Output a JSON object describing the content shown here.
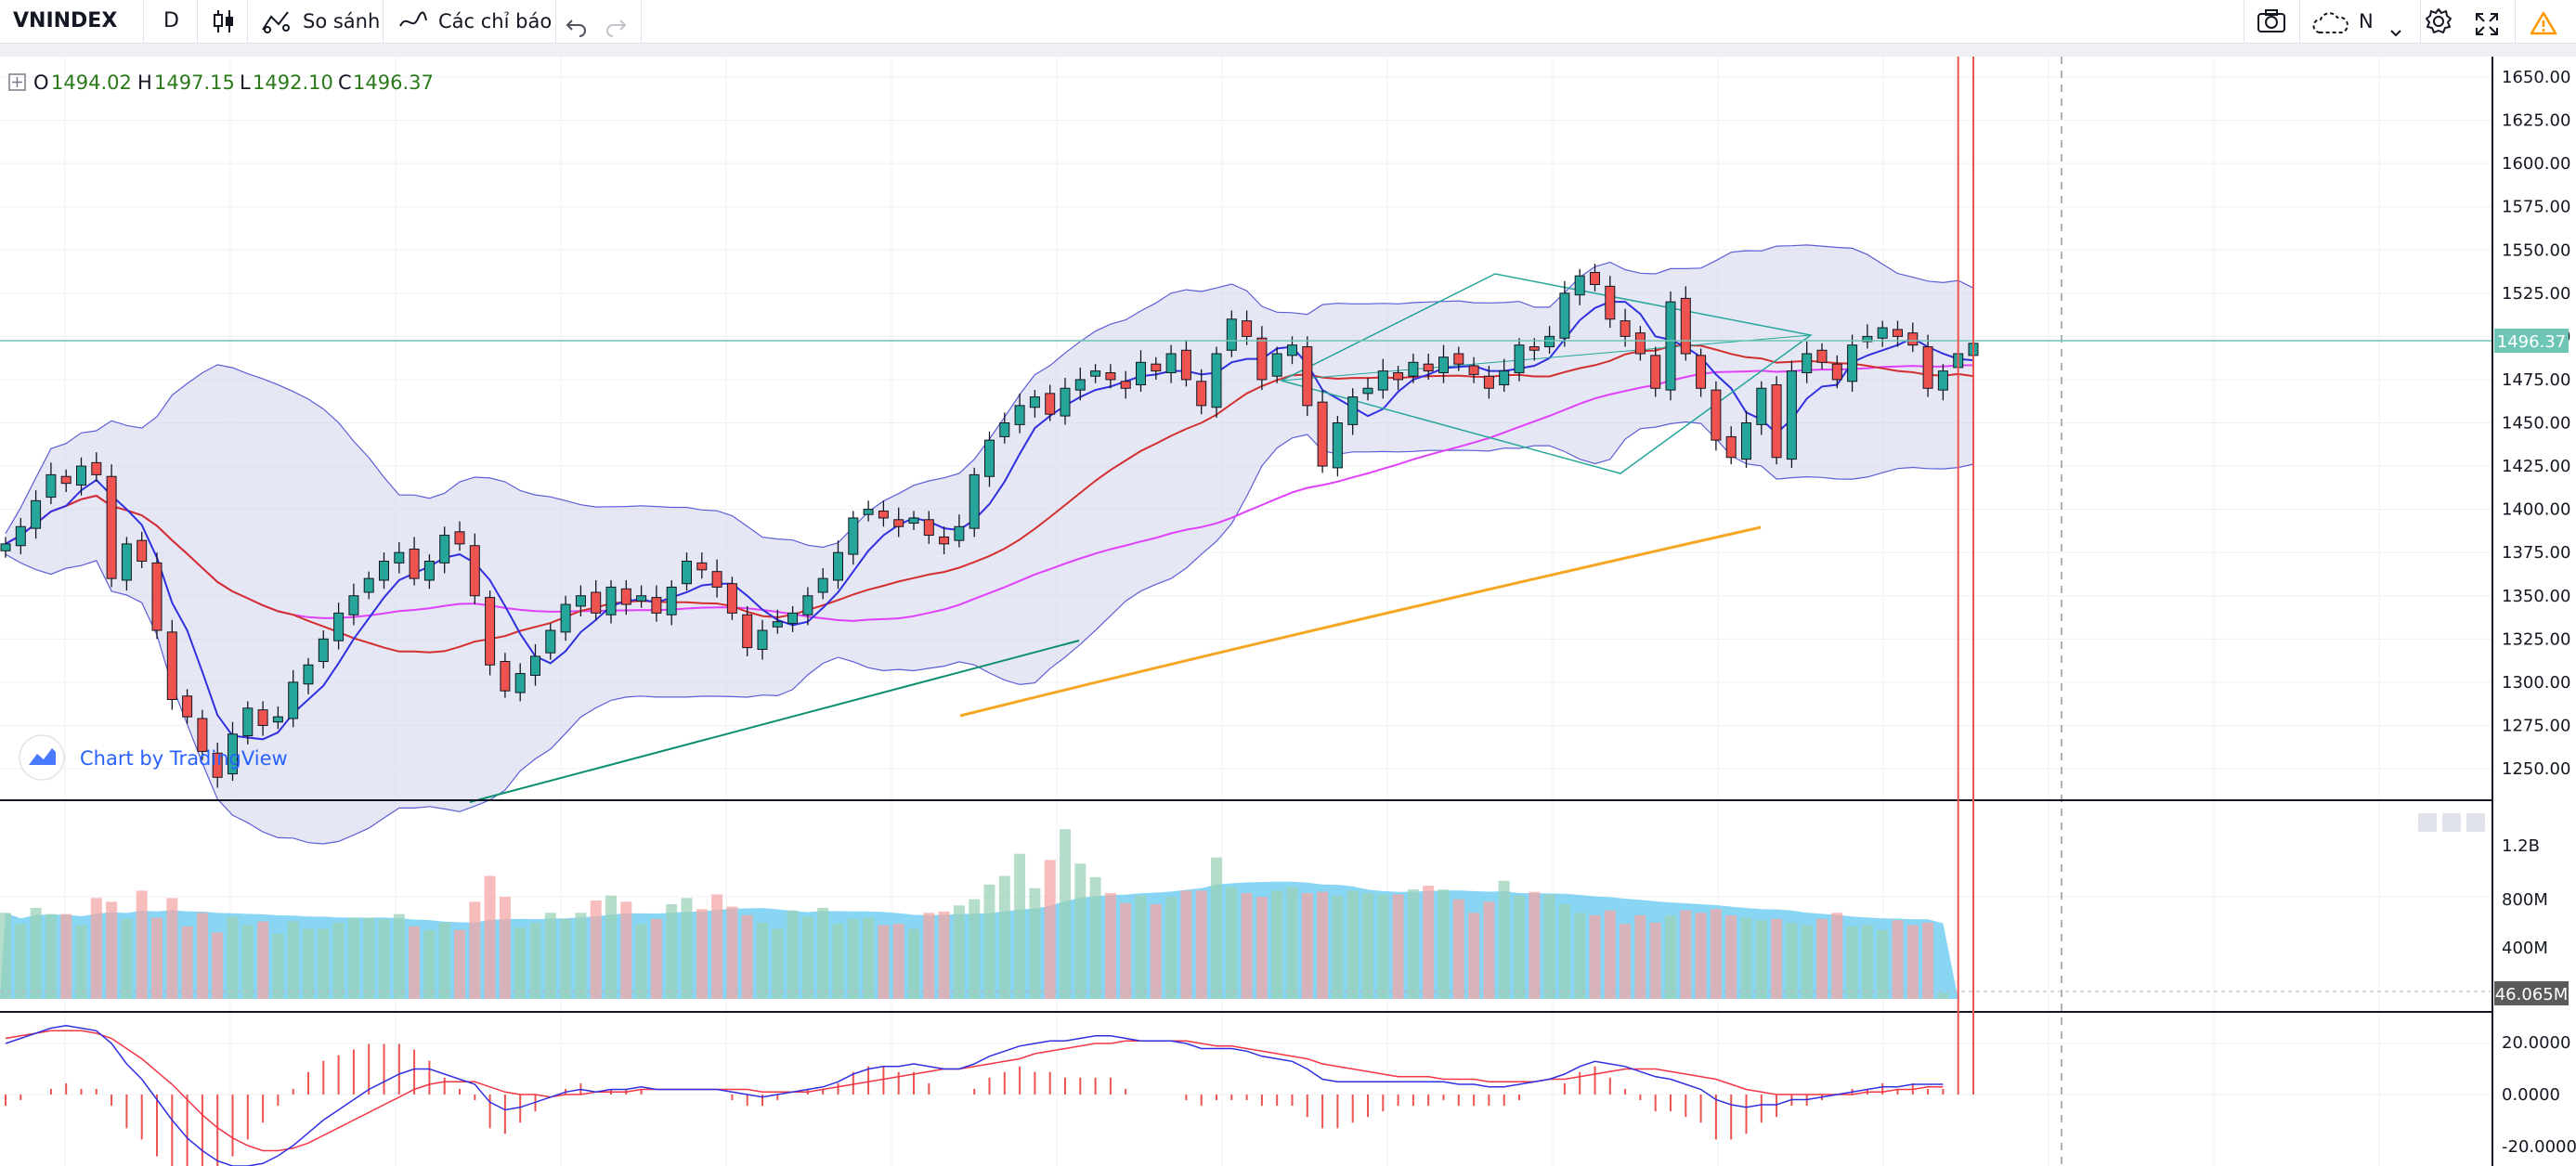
{
  "toolbar": {
    "symbol": "VNINDEX",
    "interval": "D",
    "compare_label": "So sánh",
    "indicators_label": "Các chỉ báo",
    "layout_label": "N"
  },
  "legend": {
    "open_label": "O",
    "open": "1494.02",
    "high_label": "H",
    "high": "1497.15",
    "low_label": "L",
    "low": "1492.10",
    "close_label": "C",
    "close": "1496.37"
  },
  "watermark": {
    "text": "Chart by TradingView"
  },
  "price_axis": {
    "ticks": [
      "1650.00",
      "1625.00",
      "1600.00",
      "1575.00",
      "1550.00",
      "1525.00",
      "1500.00",
      "1475.00",
      "1450.00",
      "1425.00",
      "1400.00",
      "1375.00",
      "1350.00",
      "1325.00",
      "1300.00",
      "1275.00",
      "1250.00"
    ],
    "last_price": "1496.37"
  },
  "volume_axis": {
    "ticks": [
      "1.2B",
      "800M",
      "400M"
    ],
    "last_volume": "46.065M"
  },
  "macd_axis": {
    "ticks": [
      "20.0000",
      "0.0000",
      "-20.0000"
    ]
  },
  "colors": {
    "up": "#26a69a",
    "down": "#ef5350",
    "accent": "#2962ff",
    "last_price_bg": "#6fc5b6",
    "last_volume_bg": "#5a5a5a"
  },
  "icons": [
    "candle-style-icon",
    "compare-icon",
    "indicators-icon",
    "undo-icon",
    "redo-icon",
    "camera-icon",
    "cloud-icon",
    "chevron-down-icon",
    "gear-icon",
    "fullscreen-icon",
    "warning-icon"
  ],
  "chart_data": {
    "type": "candlestick",
    "title": "VNINDEX",
    "interval": "D",
    "ylim": [
      1240,
      1660
    ],
    "last": {
      "open": 1494.02,
      "high": 1497.15,
      "low": 1492.1,
      "close": 1496.37
    },
    "series": [
      {
        "name": "close",
        "values": [
          1380,
          1390,
          1405,
          1420,
          1415,
          1425,
          1420,
          1360,
          1380,
          1370,
          1330,
          1290,
          1280,
          1260,
          1245,
          1270,
          1285,
          1275,
          1280,
          1300,
          1310,
          1325,
          1340,
          1350,
          1360,
          1370,
          1375,
          1360,
          1370,
          1385,
          1380,
          1350,
          1310,
          1295,
          1305,
          1315,
          1330,
          1345,
          1350,
          1340,
          1355,
          1345,
          1350,
          1340,
          1355,
          1370,
          1365,
          1355,
          1340,
          1320,
          1330,
          1335,
          1340,
          1350,
          1360,
          1375,
          1395,
          1400,
          1395,
          1390,
          1395,
          1385,
          1380,
          1390,
          1420,
          1440,
          1450,
          1460,
          1465,
          1455,
          1470,
          1475,
          1480,
          1475,
          1470,
          1485,
          1480,
          1490,
          1475,
          1460,
          1490,
          1510,
          1500,
          1475,
          1490,
          1495,
          1460,
          1425,
          1450,
          1465,
          1470,
          1480,
          1475,
          1485,
          1480,
          1488,
          1484,
          1478,
          1470,
          1480,
          1495,
          1492,
          1500,
          1525,
          1535,
          1530,
          1510,
          1500,
          1490,
          1470,
          1520,
          1490,
          1470,
          1440,
          1430,
          1450,
          1470,
          1430,
          1480,
          1490,
          1485,
          1475,
          1495,
          1500,
          1505,
          1500,
          1495,
          1470,
          1480,
          1490,
          1496
        ]
      },
      {
        "name": "volume_M",
        "values": [
          700,
          610,
          740,
          690,
          690,
          600,
          820,
          790,
          650,
          880,
          660,
          820,
          590,
          700,
          540,
          670,
          600,
          630,
          530,
          630,
          570,
          570,
          620,
          660,
          660,
          650,
          690,
          590,
          560,
          620,
          560,
          790,
          1000,
          830,
          580,
          620,
          700,
          650,
          700,
          800,
          840,
          790,
          610,
          650,
          770,
          820,
          730,
          850,
          750,
          680,
          620,
          570,
          720,
          670,
          740,
          610,
          650,
          660,
          600,
          610,
          570,
          700,
          710,
          760,
          810,
          930,
          1000,
          1180,
          900,
          1130,
          1380,
          1100,
          990,
          860,
          780,
          840,
          770,
          830,
          880,
          880,
          1150,
          910,
          860,
          830,
          880,
          910,
          860,
          870,
          840,
          880,
          860,
          850,
          850,
          890,
          920,
          890,
          810,
          700,
          790,
          960,
          840,
          870,
          850,
          770,
          700,
          680,
          720,
          610,
          680,
          620,
          680,
          720,
          700,
          730,
          680,
          660,
          640,
          650,
          620,
          600,
          650,
          700,
          590,
          600,
          560,
          640,
          600,
          620,
          46
        ]
      },
      {
        "name": "macd",
        "values": [
          20,
          22,
          24,
          26,
          27,
          26,
          25,
          20,
          12,
          6,
          -2,
          -10,
          -17,
          -22,
          -26,
          -28,
          -28,
          -27,
          -24,
          -20,
          -15,
          -10,
          -6,
          -2,
          2,
          5,
          8,
          10,
          10,
          8,
          6,
          4,
          -3,
          -6,
          -5,
          -3,
          -1,
          1,
          2,
          1,
          2,
          2,
          3,
          2,
          2,
          2,
          2,
          2,
          1,
          0,
          -1,
          0,
          1,
          2,
          3,
          5,
          8,
          10,
          11,
          11,
          12,
          11,
          10,
          10,
          12,
          15,
          17,
          19,
          20,
          21,
          21,
          22,
          23,
          23,
          22,
          21,
          21,
          21,
          20,
          18,
          18,
          18,
          17,
          15,
          14,
          13,
          10,
          6,
          5,
          5,
          5,
          5,
          5,
          5,
          5,
          5,
          4,
          4,
          3,
          3,
          4,
          5,
          6,
          8,
          11,
          13,
          12,
          11,
          9,
          7,
          6,
          4,
          2,
          -2,
          -4,
          -5,
          -4,
          -4,
          -2,
          -2,
          -1,
          0,
          1,
          2,
          3,
          3,
          4,
          4,
          4
        ]
      },
      {
        "name": "macd_signal",
        "values": [
          22,
          23,
          24,
          25,
          25,
          25,
          24,
          22,
          18,
          14,
          9,
          4,
          -2,
          -8,
          -13,
          -17,
          -20,
          -22,
          -22,
          -21,
          -19,
          -16,
          -13,
          -10,
          -7,
          -4,
          -1,
          2,
          4,
          5,
          5,
          5,
          3,
          1,
          0,
          0,
          -1,
          0,
          0,
          1,
          1,
          1,
          2,
          2,
          2,
          2,
          2,
          2,
          2,
          2,
          1,
          1,
          1,
          1,
          2,
          3,
          4,
          5,
          6,
          7,
          8,
          9,
          10,
          10,
          11,
          12,
          13,
          14,
          16,
          17,
          18,
          19,
          20,
          20,
          21,
          21,
          21,
          21,
          21,
          20,
          19,
          19,
          18,
          17,
          16,
          15,
          14,
          12,
          11,
          10,
          9,
          8,
          7,
          7,
          7,
          6,
          6,
          6,
          5,
          5,
          5,
          5,
          6,
          6,
          7,
          8,
          9,
          10,
          10,
          10,
          9,
          8,
          7,
          6,
          4,
          2,
          1,
          0,
          0,
          0,
          0,
          0,
          0,
          1,
          1,
          2,
          2,
          3,
          3
        ]
      }
    ],
    "moving_averages": [
      "MA5",
      "MA20",
      "MA50",
      "MA200"
    ],
    "bollinger_bands": true,
    "grid": true
  }
}
